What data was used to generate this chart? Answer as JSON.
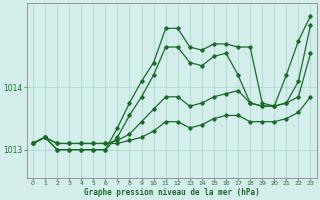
{
  "xlabel": "Graphe pression niveau de la mer (hPa)",
  "background_color": "#d4eeec",
  "line_color": "#1a6b2a",
  "grid_color": "#b0d8d4",
  "spine_color": "#888888",
  "xlim": [
    -0.5,
    23.5
  ],
  "ylim": [
    1012.55,
    1015.35
  ],
  "yticks": [
    1013,
    1014
  ],
  "xticks": [
    0,
    1,
    2,
    3,
    4,
    5,
    6,
    7,
    8,
    9,
    10,
    11,
    12,
    13,
    14,
    15,
    16,
    17,
    18,
    19,
    20,
    21,
    22,
    23
  ],
  "series": [
    [
      1013.1,
      1013.2,
      1013.1,
      1013.1,
      1013.1,
      1013.1,
      1013.1,
      1013.1,
      1013.15,
      1013.2,
      1013.3,
      1013.45,
      1013.45,
      1013.35,
      1013.4,
      1013.5,
      1013.55,
      1013.55,
      1013.45,
      1013.45,
      1013.45,
      1013.5,
      1013.6,
      1013.85
    ],
    [
      1013.1,
      1013.2,
      1013.1,
      1013.1,
      1013.1,
      1013.1,
      1013.1,
      1013.15,
      1013.25,
      1013.45,
      1013.65,
      1013.85,
      1013.85,
      1013.7,
      1013.75,
      1013.85,
      1013.9,
      1013.95,
      1013.75,
      1013.7,
      1013.7,
      1013.75,
      1013.85,
      1014.55
    ],
    [
      1013.1,
      1013.2,
      1013.0,
      1013.0,
      1013.0,
      1013.0,
      1013.0,
      1013.2,
      1013.55,
      1013.85,
      1014.2,
      1014.65,
      1014.65,
      1014.4,
      1014.35,
      1014.5,
      1014.55,
      1014.2,
      1013.75,
      1013.7,
      1013.7,
      1013.75,
      1014.1,
      1015.0
    ],
    [
      1013.1,
      1013.2,
      1013.0,
      1013.0,
      1013.0,
      1013.0,
      1013.0,
      1013.35,
      1013.75,
      1014.1,
      1014.4,
      1014.95,
      1014.95,
      1014.65,
      1014.6,
      1014.7,
      1014.7,
      1014.65,
      1014.65,
      1013.75,
      1013.7,
      1014.2,
      1014.75,
      1015.15
    ]
  ]
}
